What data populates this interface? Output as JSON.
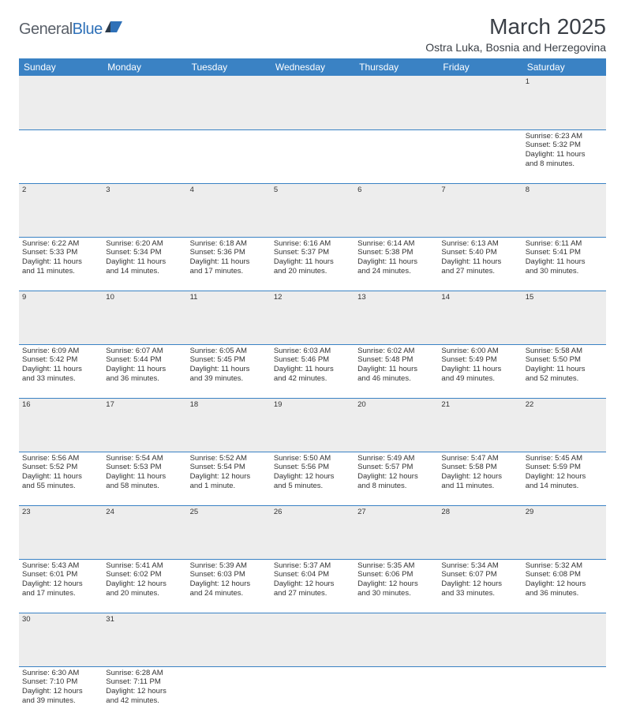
{
  "logo": {
    "part1": "General",
    "part2": "Blue"
  },
  "title": "March 2025",
  "location": "Ostra Luka, Bosnia and Herzegovina",
  "columns": [
    "Sunday",
    "Monday",
    "Tuesday",
    "Wednesday",
    "Thursday",
    "Friday",
    "Saturday"
  ],
  "colors": {
    "header_bg": "#3a82c4",
    "header_fg": "#ffffff",
    "daynum_bg": "#ededed",
    "border": "#3a82c4",
    "text": "#333333",
    "logo_gray": "#5a6069",
    "logo_blue": "#2f71b8"
  },
  "weeks": [
    [
      null,
      null,
      null,
      null,
      null,
      null,
      {
        "n": "1",
        "sr": "Sunrise: 6:23 AM",
        "ss": "Sunset: 5:32 PM",
        "d1": "Daylight: 11 hours",
        "d2": "and 8 minutes."
      }
    ],
    [
      {
        "n": "2",
        "sr": "Sunrise: 6:22 AM",
        "ss": "Sunset: 5:33 PM",
        "d1": "Daylight: 11 hours",
        "d2": "and 11 minutes."
      },
      {
        "n": "3",
        "sr": "Sunrise: 6:20 AM",
        "ss": "Sunset: 5:34 PM",
        "d1": "Daylight: 11 hours",
        "d2": "and 14 minutes."
      },
      {
        "n": "4",
        "sr": "Sunrise: 6:18 AM",
        "ss": "Sunset: 5:36 PM",
        "d1": "Daylight: 11 hours",
        "d2": "and 17 minutes."
      },
      {
        "n": "5",
        "sr": "Sunrise: 6:16 AM",
        "ss": "Sunset: 5:37 PM",
        "d1": "Daylight: 11 hours",
        "d2": "and 20 minutes."
      },
      {
        "n": "6",
        "sr": "Sunrise: 6:14 AM",
        "ss": "Sunset: 5:38 PM",
        "d1": "Daylight: 11 hours",
        "d2": "and 24 minutes."
      },
      {
        "n": "7",
        "sr": "Sunrise: 6:13 AM",
        "ss": "Sunset: 5:40 PM",
        "d1": "Daylight: 11 hours",
        "d2": "and 27 minutes."
      },
      {
        "n": "8",
        "sr": "Sunrise: 6:11 AM",
        "ss": "Sunset: 5:41 PM",
        "d1": "Daylight: 11 hours",
        "d2": "and 30 minutes."
      }
    ],
    [
      {
        "n": "9",
        "sr": "Sunrise: 6:09 AM",
        "ss": "Sunset: 5:42 PM",
        "d1": "Daylight: 11 hours",
        "d2": "and 33 minutes."
      },
      {
        "n": "10",
        "sr": "Sunrise: 6:07 AM",
        "ss": "Sunset: 5:44 PM",
        "d1": "Daylight: 11 hours",
        "d2": "and 36 minutes."
      },
      {
        "n": "11",
        "sr": "Sunrise: 6:05 AM",
        "ss": "Sunset: 5:45 PM",
        "d1": "Daylight: 11 hours",
        "d2": "and 39 minutes."
      },
      {
        "n": "12",
        "sr": "Sunrise: 6:03 AM",
        "ss": "Sunset: 5:46 PM",
        "d1": "Daylight: 11 hours",
        "d2": "and 42 minutes."
      },
      {
        "n": "13",
        "sr": "Sunrise: 6:02 AM",
        "ss": "Sunset: 5:48 PM",
        "d1": "Daylight: 11 hours",
        "d2": "and 46 minutes."
      },
      {
        "n": "14",
        "sr": "Sunrise: 6:00 AM",
        "ss": "Sunset: 5:49 PM",
        "d1": "Daylight: 11 hours",
        "d2": "and 49 minutes."
      },
      {
        "n": "15",
        "sr": "Sunrise: 5:58 AM",
        "ss": "Sunset: 5:50 PM",
        "d1": "Daylight: 11 hours",
        "d2": "and 52 minutes."
      }
    ],
    [
      {
        "n": "16",
        "sr": "Sunrise: 5:56 AM",
        "ss": "Sunset: 5:52 PM",
        "d1": "Daylight: 11 hours",
        "d2": "and 55 minutes."
      },
      {
        "n": "17",
        "sr": "Sunrise: 5:54 AM",
        "ss": "Sunset: 5:53 PM",
        "d1": "Daylight: 11 hours",
        "d2": "and 58 minutes."
      },
      {
        "n": "18",
        "sr": "Sunrise: 5:52 AM",
        "ss": "Sunset: 5:54 PM",
        "d1": "Daylight: 12 hours",
        "d2": "and 1 minute."
      },
      {
        "n": "19",
        "sr": "Sunrise: 5:50 AM",
        "ss": "Sunset: 5:56 PM",
        "d1": "Daylight: 12 hours",
        "d2": "and 5 minutes."
      },
      {
        "n": "20",
        "sr": "Sunrise: 5:49 AM",
        "ss": "Sunset: 5:57 PM",
        "d1": "Daylight: 12 hours",
        "d2": "and 8 minutes."
      },
      {
        "n": "21",
        "sr": "Sunrise: 5:47 AM",
        "ss": "Sunset: 5:58 PM",
        "d1": "Daylight: 12 hours",
        "d2": "and 11 minutes."
      },
      {
        "n": "22",
        "sr": "Sunrise: 5:45 AM",
        "ss": "Sunset: 5:59 PM",
        "d1": "Daylight: 12 hours",
        "d2": "and 14 minutes."
      }
    ],
    [
      {
        "n": "23",
        "sr": "Sunrise: 5:43 AM",
        "ss": "Sunset: 6:01 PM",
        "d1": "Daylight: 12 hours",
        "d2": "and 17 minutes."
      },
      {
        "n": "24",
        "sr": "Sunrise: 5:41 AM",
        "ss": "Sunset: 6:02 PM",
        "d1": "Daylight: 12 hours",
        "d2": "and 20 minutes."
      },
      {
        "n": "25",
        "sr": "Sunrise: 5:39 AM",
        "ss": "Sunset: 6:03 PM",
        "d1": "Daylight: 12 hours",
        "d2": "and 24 minutes."
      },
      {
        "n": "26",
        "sr": "Sunrise: 5:37 AM",
        "ss": "Sunset: 6:04 PM",
        "d1": "Daylight: 12 hours",
        "d2": "and 27 minutes."
      },
      {
        "n": "27",
        "sr": "Sunrise: 5:35 AM",
        "ss": "Sunset: 6:06 PM",
        "d1": "Daylight: 12 hours",
        "d2": "and 30 minutes."
      },
      {
        "n": "28",
        "sr": "Sunrise: 5:34 AM",
        "ss": "Sunset: 6:07 PM",
        "d1": "Daylight: 12 hours",
        "d2": "and 33 minutes."
      },
      {
        "n": "29",
        "sr": "Sunrise: 5:32 AM",
        "ss": "Sunset: 6:08 PM",
        "d1": "Daylight: 12 hours",
        "d2": "and 36 minutes."
      }
    ],
    [
      {
        "n": "30",
        "sr": "Sunrise: 6:30 AM",
        "ss": "Sunset: 7:10 PM",
        "d1": "Daylight: 12 hours",
        "d2": "and 39 minutes."
      },
      {
        "n": "31",
        "sr": "Sunrise: 6:28 AM",
        "ss": "Sunset: 7:11 PM",
        "d1": "Daylight: 12 hours",
        "d2": "and 42 minutes."
      },
      null,
      null,
      null,
      null,
      null
    ]
  ]
}
